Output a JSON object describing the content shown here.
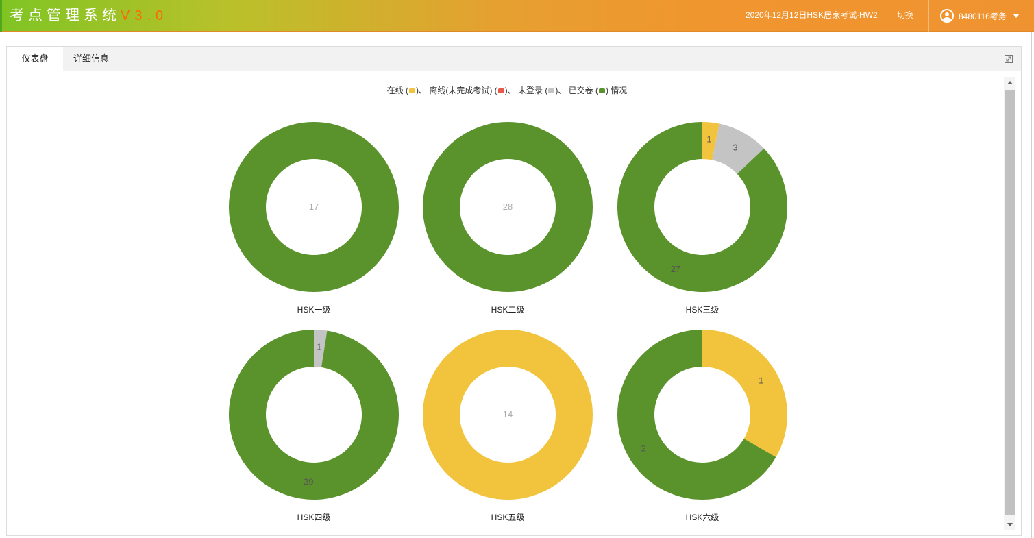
{
  "header": {
    "title": "考点管理系统",
    "version": "V3.0",
    "exam_name": "2020年12月12日HSK居家考试-HW2",
    "switch_label": "切换",
    "user_icon": "user-circle-icon",
    "user_name": "8480116考务",
    "dropdown_icon": "caret-down-icon",
    "colors": {
      "brand_start": "#7fc424",
      "brand_end": "#ef9330",
      "version": "#ff6a00"
    }
  },
  "tabs": [
    {
      "label": "仪表盘",
      "active": true
    },
    {
      "label": "详细信息",
      "active": false
    }
  ],
  "toolbar": {
    "expand_icon": "expand-icon"
  },
  "legend": {
    "text_1": "在线 (",
    "text_2": ")、 离线(未完成考试) (",
    "text_3": ")、 未登录 (",
    "text_4": ")、 已交卷 (",
    "text_5": ") 情况"
  },
  "scrollbar": {
    "up_icon": "scroll-up-arrow-icon",
    "down_icon": "scroll-down-arrow-icon"
  },
  "chart_data": {
    "type": "pie",
    "variant": "donut",
    "status_categories": [
      {
        "key": "online",
        "color": "#f2c43d"
      },
      {
        "key": "offline",
        "color": "#e8594a"
      },
      {
        "key": "not_logged_in",
        "color": "#c4c4c4"
      },
      {
        "key": "submitted",
        "color": "#5a922c"
      }
    ],
    "charts": [
      {
        "title": "HSK一级",
        "values": {
          "online": 0,
          "offline": 0,
          "not_logged_in": 0,
          "submitted": 17
        }
      },
      {
        "title": "HSK二级",
        "values": {
          "online": 0,
          "offline": 0,
          "not_logged_in": 0,
          "submitted": 28
        }
      },
      {
        "title": "HSK三级",
        "values": {
          "online": 1,
          "offline": 0,
          "not_logged_in": 3,
          "submitted": 27
        }
      },
      {
        "title": "HSK四级",
        "values": {
          "online": 0,
          "offline": 0,
          "not_logged_in": 1,
          "submitted": 39
        }
      },
      {
        "title": "HSK五级",
        "values": {
          "online": 14,
          "offline": 0,
          "not_logged_in": 0,
          "submitted": 0
        }
      },
      {
        "title": "HSK六级",
        "values": {
          "online": 1,
          "offline": 0,
          "not_logged_in": 0,
          "submitted": 2
        }
      }
    ]
  }
}
